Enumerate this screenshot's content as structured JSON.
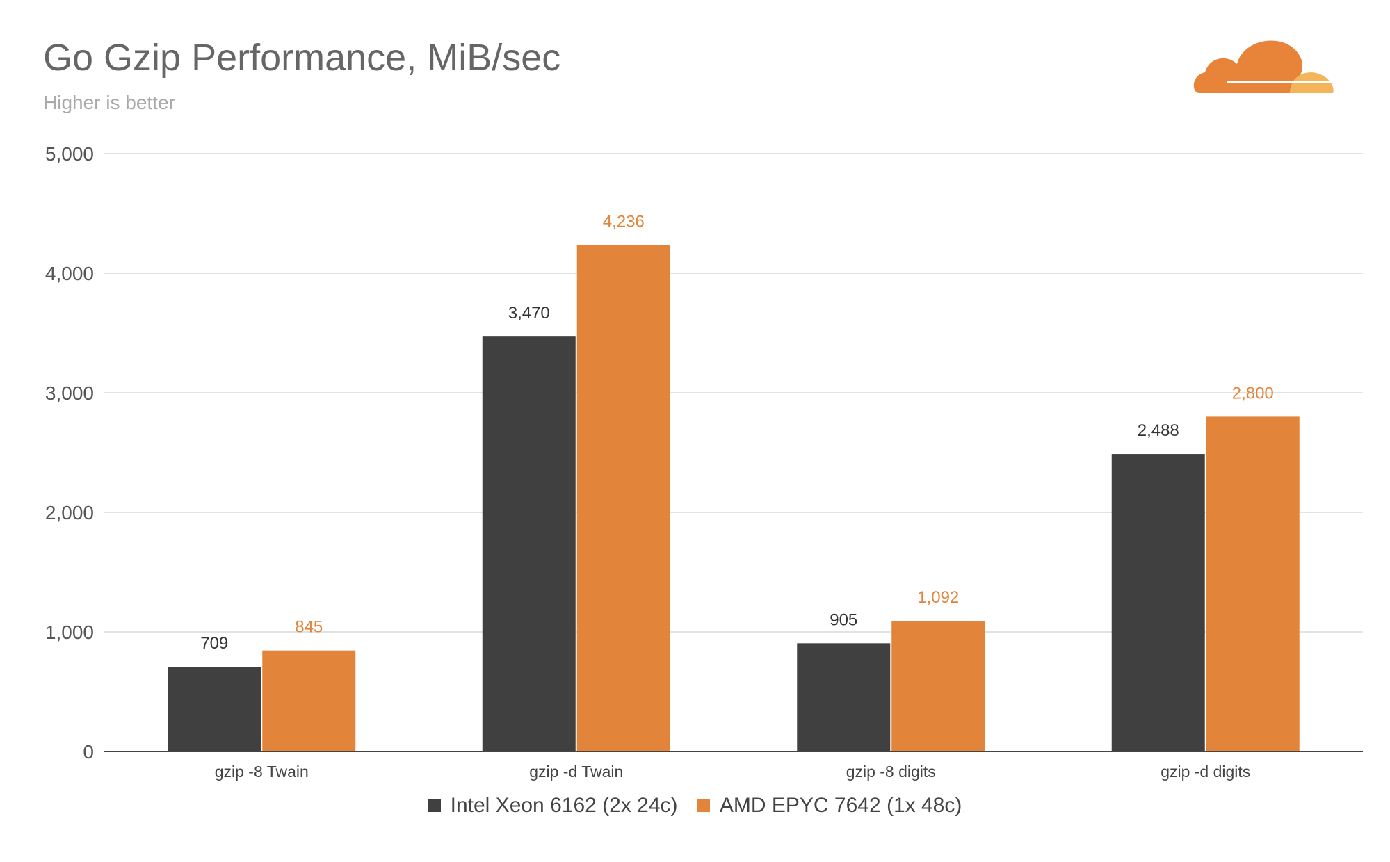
{
  "header": {
    "title": "Go Gzip Performance, MiB/sec",
    "subtitle": "Higher is better"
  },
  "logo": {
    "icon": "cloud-logo-icon",
    "colors": [
      "#e8833a",
      "#f3b45a"
    ]
  },
  "chart_data": {
    "type": "bar",
    "title": "Go Gzip Performance, MiB/sec",
    "subtitle": "Higher is better",
    "categories": [
      "gzip -8 Twain",
      "gzip -d Twain",
      "gzip -8 digits",
      "gzip -d digits"
    ],
    "series": [
      {
        "name": "Intel Xeon 6162 (2x 24c)",
        "color": "#404040",
        "label_color": "#333333",
        "values": [
          709,
          3470,
          905,
          2488
        ]
      },
      {
        "name": "AMD EPYC 7642 (1x 48c)",
        "color": "#e2843a",
        "label_color": "#e2843a",
        "values": [
          845,
          4236,
          1092,
          2800
        ]
      }
    ],
    "ylim": [
      0,
      5000
    ],
    "yticks": [
      0,
      1000,
      2000,
      3000,
      4000,
      5000
    ],
    "ytick_labels": [
      "0",
      "1,000",
      "2,000",
      "3,000",
      "4,000",
      "5,000"
    ],
    "grid": true,
    "legend_position": "bottom",
    "xlabel": "",
    "ylabel": ""
  }
}
